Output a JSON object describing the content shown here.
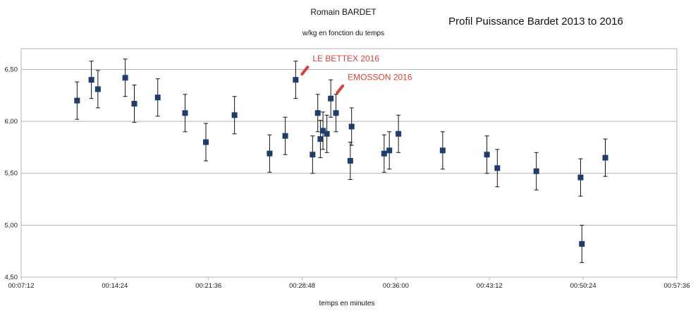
{
  "chart_data": {
    "type": "scatter",
    "title": "Romain BARDET",
    "subtitle": "w/kg en fonction du temps",
    "side_title": "Profil Puissance Bardet 2013 to 2016",
    "xlabel": "temps en minutes",
    "ylabel": "",
    "x_unit": "minutes",
    "xlim": [
      7.2,
      57.6
    ],
    "ylim": [
      4.5,
      6.7
    ],
    "x_ticks": [
      7.2,
      14.4,
      21.6,
      28.8,
      36.0,
      43.2,
      50.4,
      57.6
    ],
    "x_tick_labels": [
      "00:07:12",
      "00:14:24",
      "00:21:36",
      "00:28:48",
      "00:36:00",
      "00:43:12",
      "00:50:24",
      "00:57:36"
    ],
    "y_ticks": [
      4.5,
      5.0,
      5.5,
      6.0,
      6.5
    ],
    "y_tick_labels": [
      "4,50",
      "5,00",
      "5,50",
      "6,00",
      "6,50"
    ],
    "grid": "horizontal",
    "error_bar": 0.18,
    "marker_color": "#1f3d6b",
    "annotation_color": "#d9413a",
    "points": [
      {
        "x": 11.5,
        "y": 6.2
      },
      {
        "x": 12.6,
        "y": 6.4
      },
      {
        "x": 13.1,
        "y": 6.31
      },
      {
        "x": 15.2,
        "y": 6.42
      },
      {
        "x": 15.9,
        "y": 6.17
      },
      {
        "x": 17.7,
        "y": 6.23
      },
      {
        "x": 19.8,
        "y": 6.08
      },
      {
        "x": 21.4,
        "y": 5.8
      },
      {
        "x": 23.6,
        "y": 6.06
      },
      {
        "x": 26.3,
        "y": 5.69
      },
      {
        "x": 27.5,
        "y": 5.86
      },
      {
        "x": 28.3,
        "y": 6.4
      },
      {
        "x": 29.6,
        "y": 5.68
      },
      {
        "x": 30.0,
        "y": 6.08
      },
      {
        "x": 30.2,
        "y": 5.83
      },
      {
        "x": 30.4,
        "y": 5.91
      },
      {
        "x": 30.7,
        "y": 5.88
      },
      {
        "x": 31.0,
        "y": 6.22
      },
      {
        "x": 31.4,
        "y": 6.08
      },
      {
        "x": 32.6,
        "y": 5.95
      },
      {
        "x": 32.5,
        "y": 5.62
      },
      {
        "x": 35.1,
        "y": 5.69
      },
      {
        "x": 35.5,
        "y": 5.72
      },
      {
        "x": 36.2,
        "y": 5.88
      },
      {
        "x": 39.6,
        "y": 5.72
      },
      {
        "x": 43.0,
        "y": 5.68
      },
      {
        "x": 43.8,
        "y": 5.55
      },
      {
        "x": 46.8,
        "y": 5.52
      },
      {
        "x": 50.2,
        "y": 5.46
      },
      {
        "x": 50.3,
        "y": 4.82
      },
      {
        "x": 52.1,
        "y": 5.65
      }
    ],
    "annotations": [
      {
        "text": "LE BETTEX 2016",
        "x": 28.3,
        "y": 6.4
      },
      {
        "text": "EMOSSON 2016",
        "x": 31.0,
        "y": 6.22
      }
    ]
  }
}
